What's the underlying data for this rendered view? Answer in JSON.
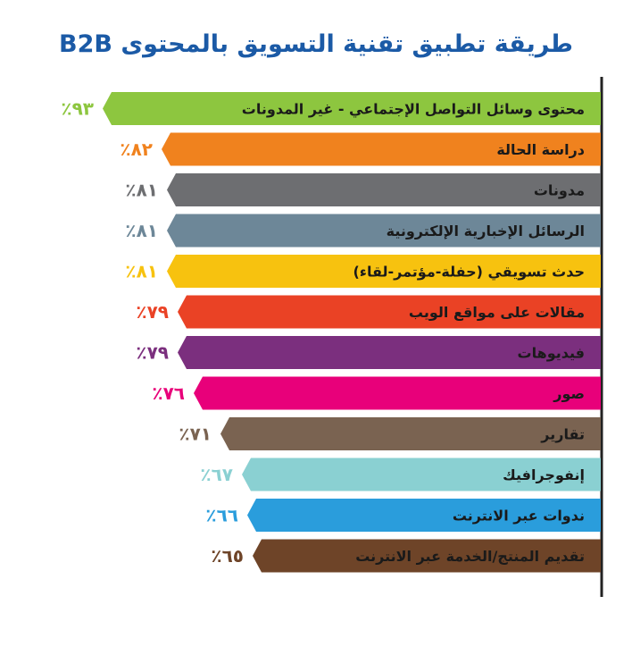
{
  "chart_data": {
    "type": "bar",
    "orientation": "horizontal",
    "title": "طريقة تطبيق تقنية التسويق بالمحتوى B2B",
    "xlim": [
      0,
      100
    ],
    "grid": false,
    "legend": "none",
    "value_format": "٪{v}",
    "categories": [
      "محتوى وسائل التواصل الإجتماعي - غير المدونات",
      "دراسة الحالة",
      "مدونات",
      "الرسائل الإخبارية الإلكترونية",
      "حدث تسويقي (حفلة-مؤتمر-لقاء)",
      "مقالات على مواقع الويب",
      "فيديوهات",
      "صور",
      "تقارير",
      "إنفوجرافيك",
      "ندوات عبر الانترنت",
      "تقديم المنتج/الخدمة عبر الانترنت"
    ],
    "values": [
      93,
      82,
      81,
      81,
      81,
      79,
      79,
      76,
      71,
      67,
      66,
      65
    ],
    "value_labels": [
      "٪٩٣",
      "٪٨٢",
      "٪٨١",
      "٪٨١",
      "٪٨١",
      "٪٧٩",
      "٪٧٩",
      "٪٧٦",
      "٪٧١",
      "٪٦٧",
      "٪٦٦",
      "٪٦٥"
    ],
    "colors": [
      "#8dc63f",
      "#f0821e",
      "#6d6e71",
      "#6d8798",
      "#f7c20f",
      "#ea4225",
      "#7b2f7e",
      "#e8007a",
      "#7a6351",
      "#8ad0d2",
      "#2a9ddc",
      "#6e4428"
    ]
  }
}
